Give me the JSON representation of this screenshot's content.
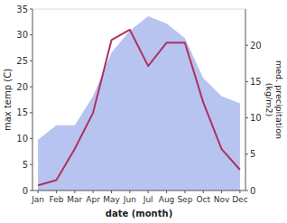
{
  "chart_data": {
    "type": "line",
    "xlabel": "date (month)",
    "ylabel": "max temp (C)",
    "y2label": "med. precipitation\n(kg/m2)",
    "categories": [
      "Jan",
      "Feb",
      "Mar",
      "Apr",
      "May",
      "Jun",
      "Jul",
      "Aug",
      "Sep",
      "Oct",
      "Nov",
      "Dec"
    ],
    "series": [
      {
        "type": "area",
        "axis": "y2",
        "color": "#b8c4f0",
        "values": [
          7.0,
          9.0,
          9.0,
          13.0,
          19.0,
          22.0,
          24.0,
          23.0,
          21.0,
          15.5,
          13.0,
          12.0
        ]
      },
      {
        "type": "line",
        "color": "#b03060",
        "values": [
          1.0,
          2.0,
          8.0,
          15.0,
          29.0,
          31.0,
          24.0,
          28.5,
          28.5,
          17.0,
          8.0,
          4.0
        ]
      }
    ],
    "ylim": [
      0,
      35
    ],
    "yticks": [
      0,
      5,
      10,
      15,
      20,
      25,
      30,
      35
    ],
    "y2lim": [
      0,
      25.0
    ],
    "y2ticks": [
      0,
      5,
      10,
      15,
      20
    ],
    "grid": false
  }
}
